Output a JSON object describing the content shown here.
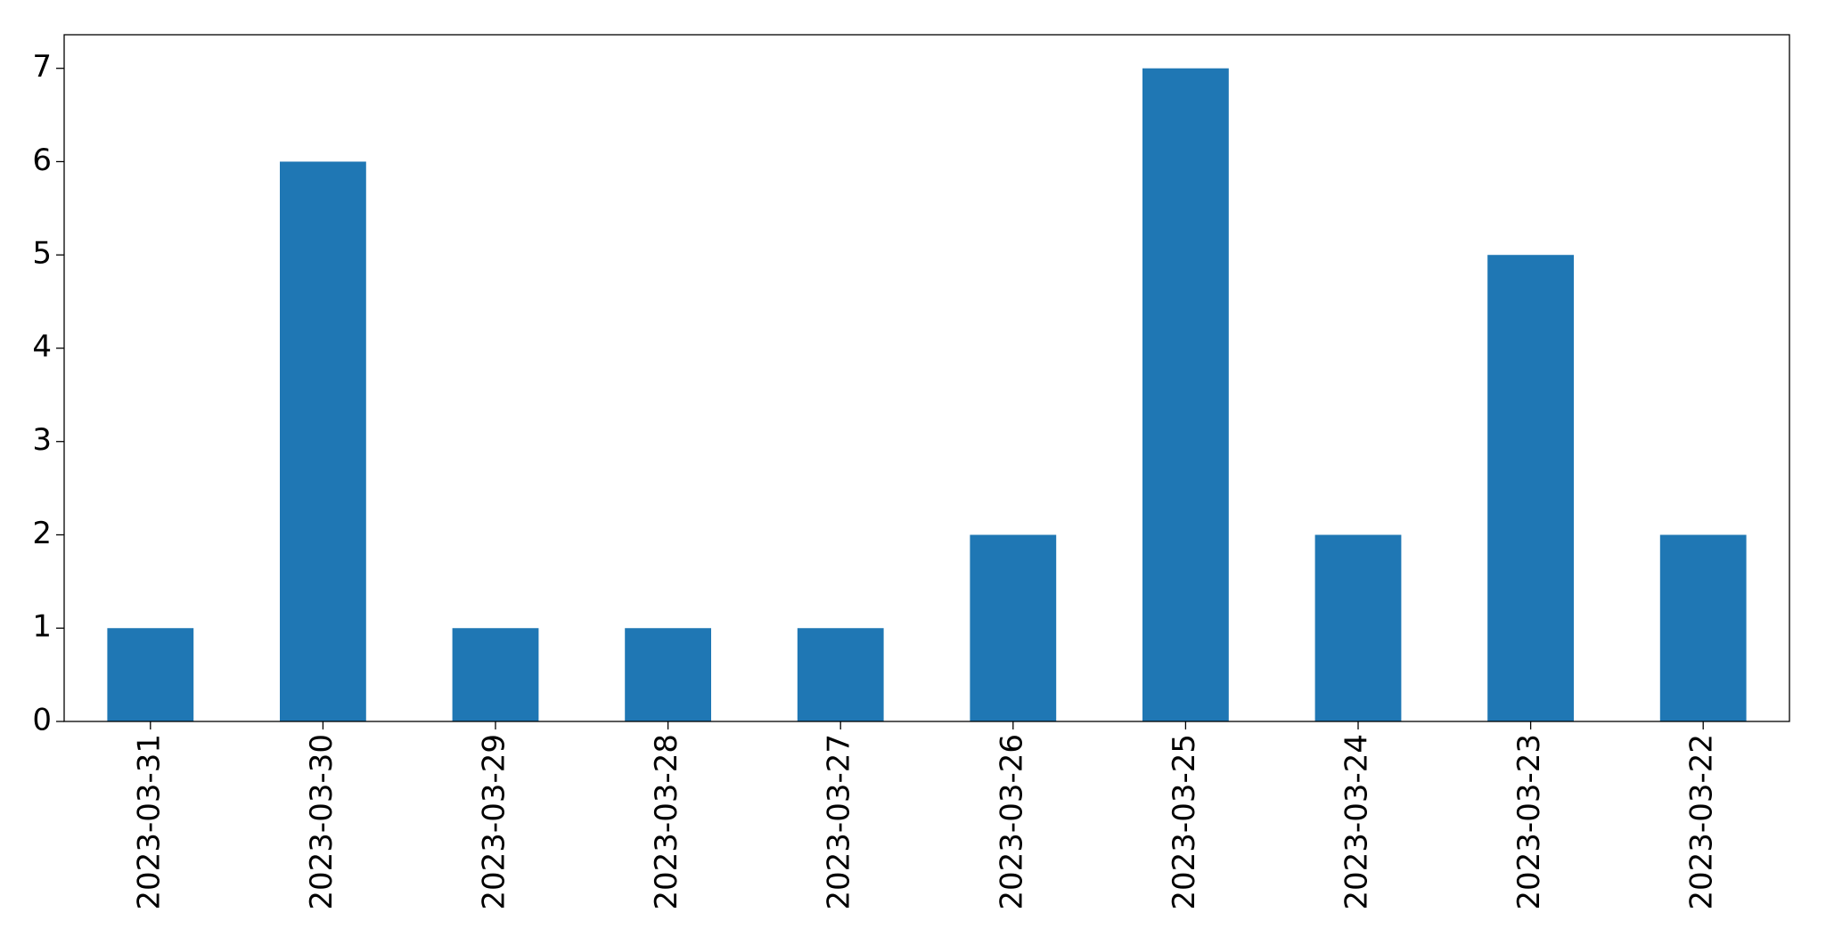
{
  "chart_data": {
    "type": "bar",
    "categories": [
      "2023-03-31",
      "2023-03-30",
      "2023-03-29",
      "2023-03-28",
      "2023-03-27",
      "2023-03-26",
      "2023-03-25",
      "2023-03-24",
      "2023-03-23",
      "2023-03-22"
    ],
    "values": [
      1,
      6,
      1,
      1,
      1,
      2,
      7,
      2,
      5,
      2
    ],
    "color": "#1f77b4",
    "ylim": [
      0,
      7.36
    ],
    "yticks": [
      0,
      1,
      2,
      3,
      4,
      5,
      6,
      7
    ],
    "grid": false
  }
}
